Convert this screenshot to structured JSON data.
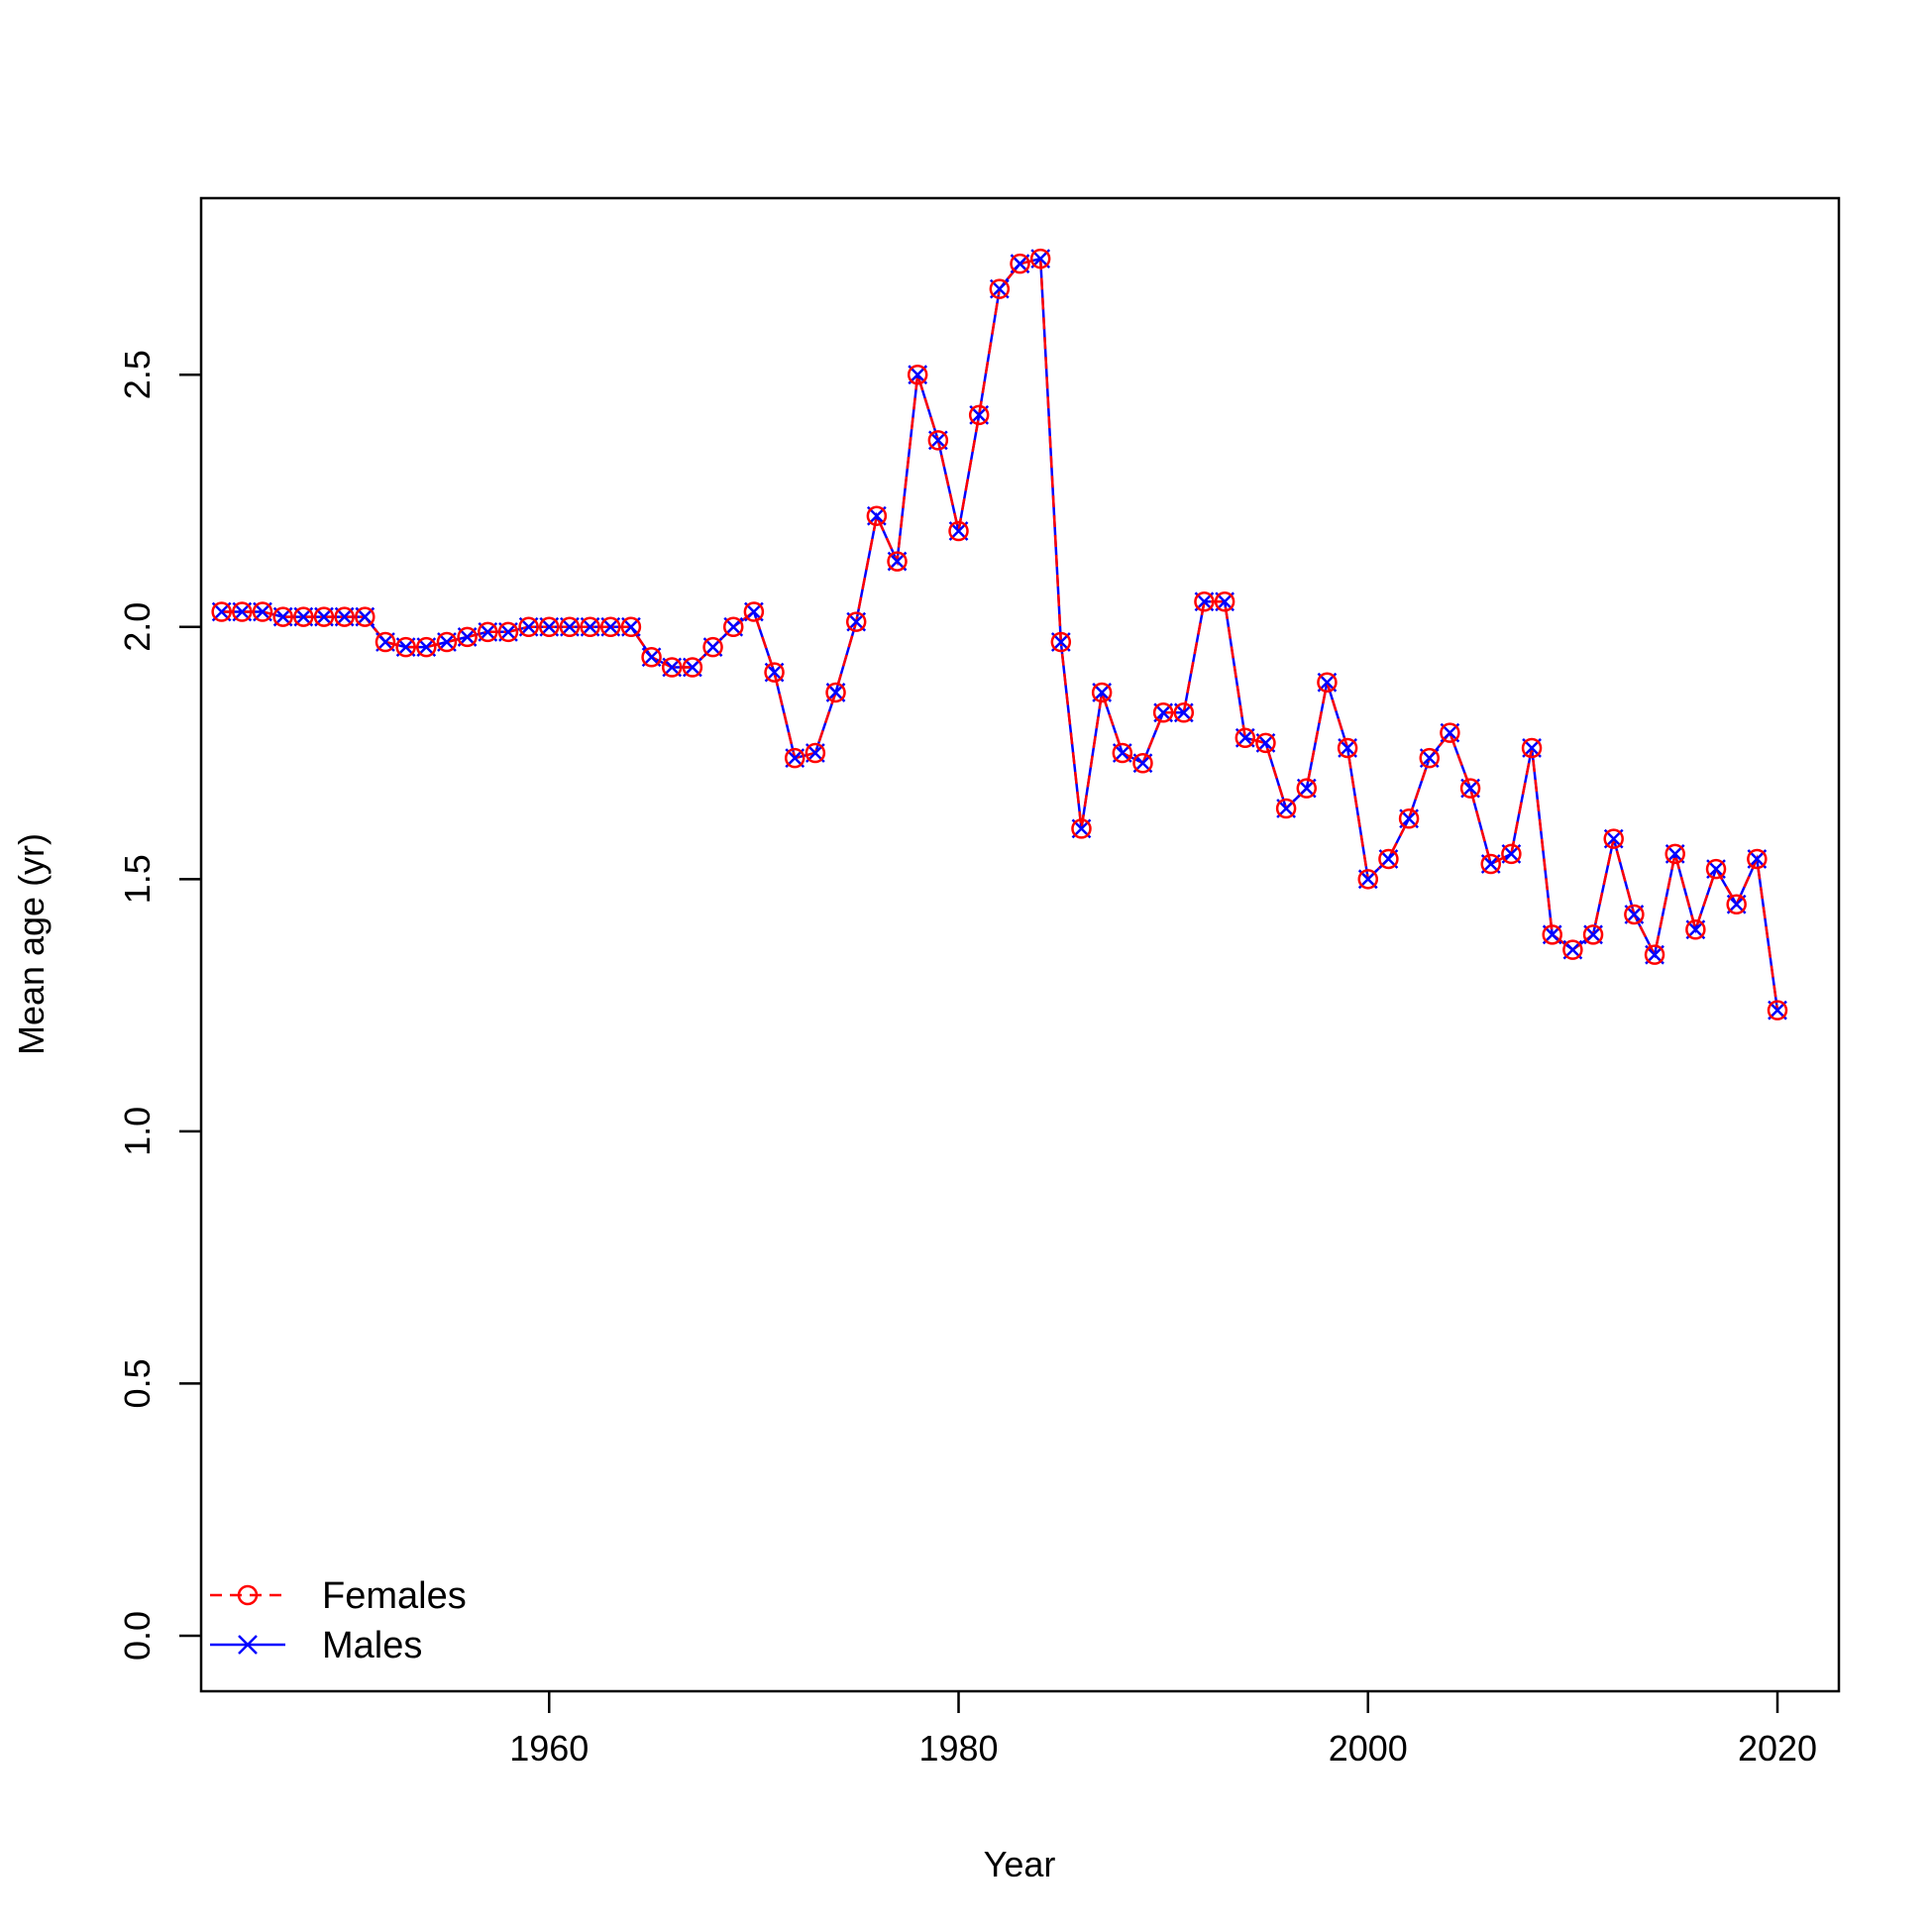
{
  "chart_data": {
    "type": "line",
    "title": "",
    "xlabel": "Year",
    "ylabel": "Mean age (yr)",
    "xlim": [
      1943,
      2023
    ],
    "ylim": [
      -0.11,
      2.85
    ],
    "xticks": [
      "1960",
      "1980",
      "2000",
      "2020"
    ],
    "xtick_values": [
      1960,
      1980,
      2000,
      2020
    ],
    "yticks": [
      "0.0",
      "0.5",
      "1.0",
      "1.5",
      "2.0",
      "2.5"
    ],
    "ytick_values": [
      0,
      0.5,
      1.0,
      1.5,
      2.0,
      2.5
    ],
    "grid": false,
    "legend_position": "bottom-left",
    "x": [
      1944,
      1945,
      1946,
      1947,
      1948,
      1949,
      1950,
      1951,
      1952,
      1953,
      1954,
      1955,
      1956,
      1957,
      1958,
      1959,
      1960,
      1961,
      1962,
      1963,
      1964,
      1965,
      1966,
      1967,
      1968,
      1969,
      1970,
      1971,
      1972,
      1973,
      1974,
      1975,
      1976,
      1977,
      1978,
      1979,
      1980,
      1981,
      1982,
      1983,
      1984,
      1985,
      1986,
      1987,
      1988,
      1989,
      1990,
      1991,
      1992,
      1993,
      1994,
      1995,
      1996,
      1997,
      1998,
      1999,
      2000,
      2001,
      2002,
      2003,
      2004,
      2005,
      2006,
      2007,
      2008,
      2009,
      2010,
      2011,
      2012,
      2013,
      2014,
      2015,
      2016,
      2017,
      2018,
      2019,
      2020
    ],
    "series": [
      {
        "name": "Females",
        "color": "#ff0000",
        "line_style": "dashed",
        "marker": "circle",
        "values": [
          2.03,
          2.03,
          2.03,
          2.02,
          2.02,
          2.02,
          2.02,
          2.02,
          1.97,
          1.96,
          1.96,
          1.97,
          1.98,
          1.99,
          1.99,
          2.0,
          2.0,
          2.0,
          2.0,
          2.0,
          2.0,
          1.94,
          1.92,
          1.92,
          1.96,
          2.0,
          2.03,
          1.91,
          1.74,
          1.75,
          1.87,
          2.01,
          2.22,
          2.13,
          2.5,
          2.37,
          2.19,
          2.42,
          2.67,
          2.72,
          2.73,
          1.97,
          1.6,
          1.87,
          1.75,
          1.73,
          1.83,
          1.83,
          2.05,
          2.05,
          1.78,
          1.77,
          1.64,
          1.68,
          1.89,
          1.76,
          1.5,
          1.54,
          1.62,
          1.74,
          1.79,
          1.68,
          1.53,
          1.55,
          1.76,
          1.39,
          1.36,
          1.39,
          1.58,
          1.43,
          1.35,
          1.55,
          1.4,
          1.52,
          1.45,
          1.54,
          1.24
        ]
      },
      {
        "name": "Males",
        "color": "#0000ff",
        "line_style": "solid",
        "marker": "cross",
        "values": [
          2.03,
          2.03,
          2.03,
          2.02,
          2.02,
          2.02,
          2.02,
          2.02,
          1.97,
          1.96,
          1.96,
          1.97,
          1.98,
          1.99,
          1.99,
          2.0,
          2.0,
          2.0,
          2.0,
          2.0,
          2.0,
          1.94,
          1.92,
          1.92,
          1.96,
          2.0,
          2.03,
          1.91,
          1.74,
          1.75,
          1.87,
          2.01,
          2.22,
          2.13,
          2.5,
          2.37,
          2.19,
          2.42,
          2.67,
          2.72,
          2.73,
          1.97,
          1.6,
          1.87,
          1.75,
          1.73,
          1.83,
          1.83,
          2.05,
          2.05,
          1.78,
          1.77,
          1.64,
          1.68,
          1.89,
          1.76,
          1.5,
          1.54,
          1.62,
          1.74,
          1.79,
          1.68,
          1.53,
          1.55,
          1.76,
          1.39,
          1.36,
          1.39,
          1.58,
          1.43,
          1.35,
          1.55,
          1.4,
          1.52,
          1.45,
          1.54,
          1.24
        ]
      }
    ]
  }
}
